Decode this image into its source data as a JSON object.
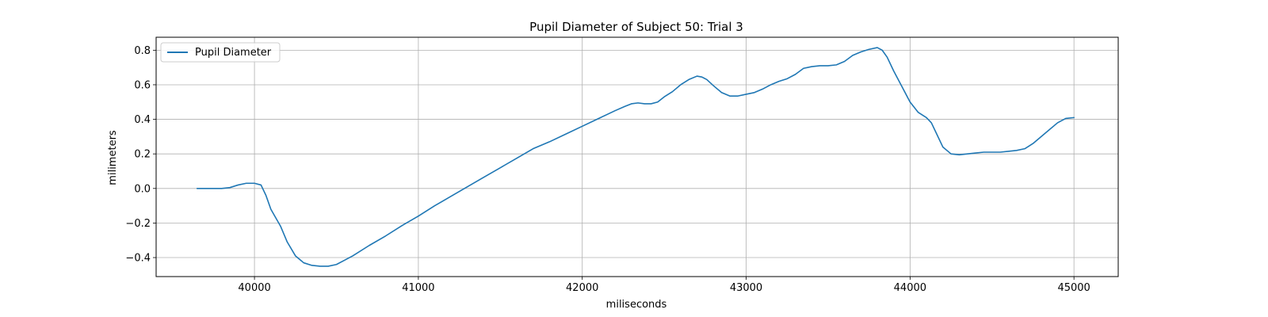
{
  "chart_data": {
    "type": "line",
    "title": "Pupil Diameter of Subject 50: Trial 3",
    "xlabel": "miliseconds",
    "ylabel": "milimeters",
    "xlim": [
      39400,
      45270
    ],
    "ylim": [
      -0.51,
      0.875
    ],
    "xticks": [
      40000,
      41000,
      42000,
      43000,
      44000,
      45000
    ],
    "yticks": [
      -0.4,
      -0.2,
      0.0,
      0.2,
      0.4,
      0.6,
      0.8
    ],
    "ytick_labels": [
      "−0.4",
      "−0.2",
      "0.0",
      "0.2",
      "0.4",
      "0.6",
      "0.8"
    ],
    "grid": true,
    "legend_position": "upper-left",
    "series": [
      {
        "name": "Pupil Diameter",
        "color": "#1f77b4",
        "x": [
          39650,
          39700,
          39750,
          39800,
          39850,
          39900,
          39950,
          40000,
          40040,
          40070,
          40100,
          40130,
          40160,
          40200,
          40250,
          40300,
          40350,
          40400,
          40450,
          40500,
          40550,
          40600,
          40700,
          40800,
          40900,
          41000,
          41100,
          41200,
          41300,
          41400,
          41500,
          41600,
          41700,
          41800,
          41900,
          42000,
          42100,
          42200,
          42260,
          42300,
          42340,
          42380,
          42420,
          42460,
          42500,
          42550,
          42600,
          42650,
          42700,
          42730,
          42760,
          42800,
          42850,
          42900,
          42950,
          43000,
          43050,
          43100,
          43150,
          43200,
          43250,
          43300,
          43350,
          43400,
          43450,
          43500,
          43550,
          43600,
          43650,
          43700,
          43750,
          43800,
          43830,
          43860,
          43900,
          43950,
          44000,
          44050,
          44100,
          44130,
          44160,
          44200,
          44250,
          44300,
          44350,
          44400,
          44450,
          44500,
          44550,
          44600,
          44650,
          44700,
          44750,
          44800,
          44850,
          44900,
          44950,
          45000
        ],
        "y": [
          0.0,
          0.0,
          0.0,
          0.0,
          0.005,
          0.02,
          0.03,
          0.03,
          0.02,
          -0.04,
          -0.12,
          -0.17,
          -0.22,
          -0.31,
          -0.39,
          -0.43,
          -0.445,
          -0.45,
          -0.45,
          -0.44,
          -0.415,
          -0.39,
          -0.33,
          -0.275,
          -0.215,
          -0.16,
          -0.1,
          -0.045,
          0.01,
          0.065,
          0.12,
          0.175,
          0.23,
          0.27,
          0.315,
          0.36,
          0.405,
          0.45,
          0.475,
          0.49,
          0.495,
          0.49,
          0.49,
          0.5,
          0.53,
          0.56,
          0.6,
          0.63,
          0.65,
          0.645,
          0.63,
          0.595,
          0.555,
          0.535,
          0.535,
          0.545,
          0.555,
          0.575,
          0.6,
          0.62,
          0.635,
          0.66,
          0.695,
          0.705,
          0.71,
          0.71,
          0.715,
          0.735,
          0.77,
          0.79,
          0.805,
          0.815,
          0.8,
          0.76,
          0.68,
          0.59,
          0.5,
          0.44,
          0.41,
          0.38,
          0.32,
          0.24,
          0.2,
          0.195,
          0.2,
          0.205,
          0.21,
          0.21,
          0.21,
          0.215,
          0.22,
          0.23,
          0.26,
          0.3,
          0.34,
          0.38,
          0.405,
          0.41
        ]
      }
    ]
  }
}
